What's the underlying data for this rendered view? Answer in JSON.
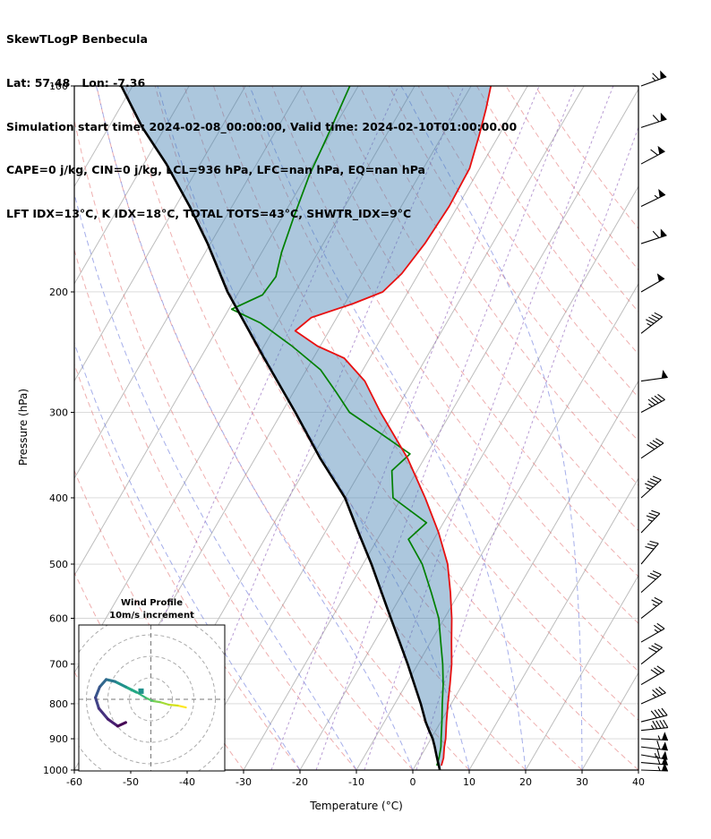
{
  "header": {
    "line1": "SkewTLogP Benbecula",
    "line2": "Lat: 57.48   Lon: -7.36",
    "line3": "Simulation start time: 2024-02-08_00:00:00, Valid time: 2024-02-10T01:00:00.00",
    "line4": "CAPE=0 j/kg, CIN=0 j/kg, LCL=936 hPa, LFC=nan hPa, EQ=nan hPa",
    "line5": "LFT IDX=13°C, K IDX=18°C, TOTAL TOTS=43°C, SHWTR_IDX=9°C"
  },
  "chart_data": {
    "type": "skewt-logp",
    "title": "SkewTLogP Benbecula",
    "xlabel": "Temperature (°C)",
    "ylabel": "Pressure (hPa)",
    "t_range": [
      -60,
      40
    ],
    "p_range": [
      100,
      1000
    ],
    "skew": 0.58,
    "temp_ticks": [
      -60,
      -50,
      -40,
      -30,
      -20,
      -10,
      0,
      10,
      20,
      30,
      40
    ],
    "pressure_ticks": [
      100,
      200,
      300,
      400,
      500,
      600,
      700,
      800,
      900,
      1000
    ],
    "isotherm_step": 10,
    "isotherm_range": [
      -120,
      40
    ],
    "dry_adiabats_theta": [
      -60,
      -50,
      -40,
      -30,
      -20,
      -10,
      0,
      10,
      20,
      30,
      40,
      50,
      60,
      70,
      80,
      90,
      100,
      110,
      120,
      130,
      140,
      150,
      160
    ],
    "moist_adiabats_thetaw": [
      -20,
      -10,
      0,
      10,
      20,
      30,
      40,
      50,
      60
    ],
    "mixing_ratio_g_kg": [
      0.02,
      0.1,
      0.5,
      1,
      2,
      4
    ],
    "temperature_profile": [
      [
        985,
        4.6
      ],
      [
        960,
        4.2
      ],
      [
        925,
        3.2
      ],
      [
        900,
        2.6
      ],
      [
        850,
        1.0
      ],
      [
        800,
        -0.6
      ],
      [
        750,
        -2.2
      ],
      [
        700,
        -4.0
      ],
      [
        650,
        -6.3
      ],
      [
        600,
        -8.7
      ],
      [
        550,
        -11.6
      ],
      [
        500,
        -15.0
      ],
      [
        450,
        -19.8
      ],
      [
        400,
        -25.8
      ],
      [
        350,
        -33.0
      ],
      [
        300,
        -42.5
      ],
      [
        270,
        -48.5
      ],
      [
        250,
        -54.5
      ],
      [
        240,
        -60.5
      ],
      [
        228,
        -66.0
      ],
      [
        218,
        -64.5
      ],
      [
        208,
        -58.5
      ],
      [
        200,
        -54.5
      ],
      [
        188,
        -53.0
      ],
      [
        170,
        -52.0
      ],
      [
        150,
        -51.5
      ],
      [
        132,
        -51.8
      ],
      [
        118,
        -53.5
      ],
      [
        108,
        -55.0
      ],
      [
        100,
        -56.5
      ]
    ],
    "dewpoint_profile": [
      [
        985,
        3.8
      ],
      [
        960,
        3.4
      ],
      [
        925,
        2.6
      ],
      [
        900,
        1.8
      ],
      [
        850,
        0.2
      ],
      [
        800,
        -1.6
      ],
      [
        750,
        -3.4
      ],
      [
        700,
        -5.6
      ],
      [
        650,
        -8.2
      ],
      [
        600,
        -11.0
      ],
      [
        550,
        -15.0
      ],
      [
        500,
        -19.5
      ],
      [
        460,
        -24.5
      ],
      [
        435,
        -23.0
      ],
      [
        400,
        -31.5
      ],
      [
        365,
        -34.5
      ],
      [
        345,
        -33.0
      ],
      [
        320,
        -41.0
      ],
      [
        300,
        -48.0
      ],
      [
        280,
        -52.5
      ],
      [
        260,
        -57.5
      ],
      [
        240,
        -65.0
      ],
      [
        222,
        -73.0
      ],
      [
        212,
        -79.5
      ],
      [
        202,
        -75.5
      ],
      [
        190,
        -75.0
      ],
      [
        175,
        -76.5
      ],
      [
        155,
        -78.0
      ],
      [
        135,
        -79.5
      ],
      [
        115,
        -80.5
      ],
      [
        100,
        -81.5
      ]
    ],
    "parcel_profile": [
      [
        1000,
        4.8
      ],
      [
        975,
        3.7
      ],
      [
        950,
        2.6
      ],
      [
        925,
        1.5
      ],
      [
        900,
        0.3
      ],
      [
        875,
        -1.2
      ],
      [
        850,
        -2.7
      ],
      [
        800,
        -5.4
      ],
      [
        750,
        -8.5
      ],
      [
        700,
        -11.8
      ],
      [
        650,
        -15.5
      ],
      [
        600,
        -19.5
      ],
      [
        550,
        -23.8
      ],
      [
        500,
        -28.5
      ],
      [
        450,
        -34.0
      ],
      [
        400,
        -40.0
      ],
      [
        350,
        -48.5
      ],
      [
        300,
        -57.6
      ],
      [
        250,
        -68.7
      ],
      [
        200,
        -82.0
      ],
      [
        170,
        -90.5
      ],
      [
        150,
        -97.5
      ],
      [
        130,
        -106.0
      ],
      [
        115,
        -114.0
      ],
      [
        100,
        -122.0
      ]
    ],
    "wind_barbs": [
      [
        100,
        20,
        65
      ],
      [
        115,
        18,
        60
      ],
      [
        130,
        28,
        60
      ],
      [
        150,
        26,
        55
      ],
      [
        170,
        18,
        60
      ],
      [
        200,
        30,
        50
      ],
      [
        230,
        38,
        45
      ],
      [
        270,
        8,
        50
      ],
      [
        300,
        28,
        45
      ],
      [
        350,
        34,
        40
      ],
      [
        400,
        42,
        45
      ],
      [
        450,
        46,
        35
      ],
      [
        500,
        50,
        30
      ],
      [
        550,
        42,
        30
      ],
      [
        600,
        38,
        25
      ],
      [
        650,
        30,
        25
      ],
      [
        700,
        38,
        30
      ],
      [
        750,
        30,
        30
      ],
      [
        800,
        24,
        35
      ],
      [
        850,
        14,
        40
      ],
      [
        875,
        6,
        45
      ],
      [
        900,
        -3,
        55
      ],
      [
        925,
        -7,
        60
      ],
      [
        950,
        -10,
        65
      ],
      [
        975,
        -5,
        60
      ],
      [
        1000,
        -2,
        55
      ]
    ],
    "colors": {
      "temperature": "#e81010",
      "dewpoint": "#008000",
      "parcel": "#000000",
      "shade": "#4682b4",
      "isotherm": "#bdbdbd",
      "grid": "#d6d6d6",
      "dry_adiabat": "#e06060",
      "moist_adiabat": "#5b6bd8",
      "mixing_ratio": "#9467bd",
      "barb": "#000000"
    },
    "hodograph": {
      "title": "Wind Profile",
      "subtitle": "10m/s increment",
      "ring_radii_ms": [
        10,
        20,
        30,
        40
      ],
      "ring_increment_ms": 10,
      "path_uv_ms": [
        [
          16.3,
          -3.8
        ],
        [
          12.5,
          -2.9
        ],
        [
          8.3,
          -2.5
        ],
        [
          4.2,
          -1.3
        ],
        [
          0.8,
          -0.8
        ],
        [
          -2.5,
          0.8
        ],
        [
          -6.7,
          3.3
        ],
        [
          -11.7,
          5.8
        ],
        [
          -16.7,
          8.3
        ],
        [
          -20.8,
          9.2
        ],
        [
          -23.8,
          5.8
        ],
        [
          -25.8,
          0.8
        ],
        [
          -24.2,
          -4.2
        ],
        [
          -20.0,
          -9.2
        ],
        [
          -15.4,
          -12.5
        ],
        [
          -11.7,
          -10.8
        ]
      ],
      "path_colors": [
        "#fde725",
        "#d2e21b",
        "#a5db36",
        "#7ad151",
        "#54c568",
        "#35b779",
        "#22a884",
        "#21918c",
        "#2a788e",
        "#31688e",
        "#39568c",
        "#414487",
        "#46327e",
        "#481f70",
        "#440154"
      ],
      "marker_uv_ms": [
        -4.6,
        3.8
      ],
      "marker_color": "#21918c"
    }
  }
}
